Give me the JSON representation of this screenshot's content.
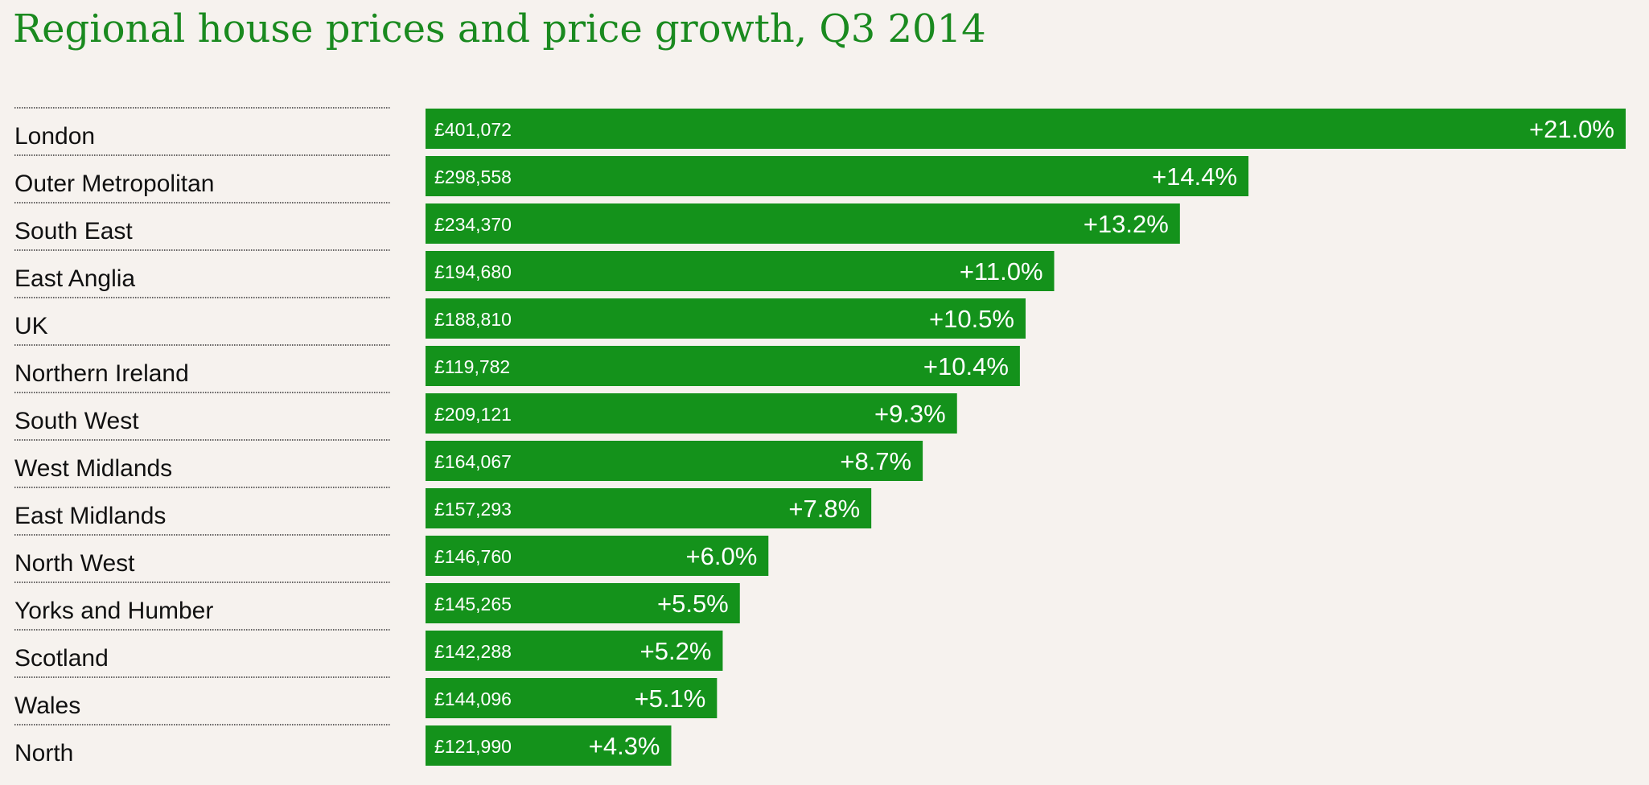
{
  "chart_data": {
    "type": "bar",
    "orientation": "horizontal",
    "title": "Regional house prices and price growth, Q3 2014",
    "xlabel": "",
    "ylabel": "",
    "grid": false,
    "xlim": [
      0,
      21.0
    ],
    "bar_color": "#14921b",
    "categories": [
      "London",
      "Outer Metropolitan",
      "South East",
      "East Anglia",
      "UK",
      "Northern Ireland",
      "South West",
      "West Midlands",
      "East Midlands",
      "North West",
      "Yorks and Humber",
      "Scotland",
      "Wales",
      "North"
    ],
    "values": [
      21.0,
      14.4,
      13.2,
      11.0,
      10.5,
      10.4,
      9.3,
      8.7,
      7.8,
      6.0,
      5.5,
      5.2,
      5.1,
      4.3
    ],
    "value_labels": [
      "+21.0%",
      "+14.4%",
      "+13.2%",
      "+11.0%",
      "+10.5%",
      "+10.4%",
      "+9.3%",
      "+8.7%",
      "+7.8%",
      "+6.0%",
      "+5.5%",
      "+5.2%",
      "+5.1%",
      "+4.3%"
    ],
    "price_labels": [
      "£401,072",
      "£298,558",
      "£234,370",
      "£194,680",
      "£188,810",
      "£119,782",
      "£209,121",
      "£164,067",
      "£157,293",
      "£146,760",
      "£145,265",
      "£142,288",
      "£144,096",
      "£121,990"
    ]
  }
}
